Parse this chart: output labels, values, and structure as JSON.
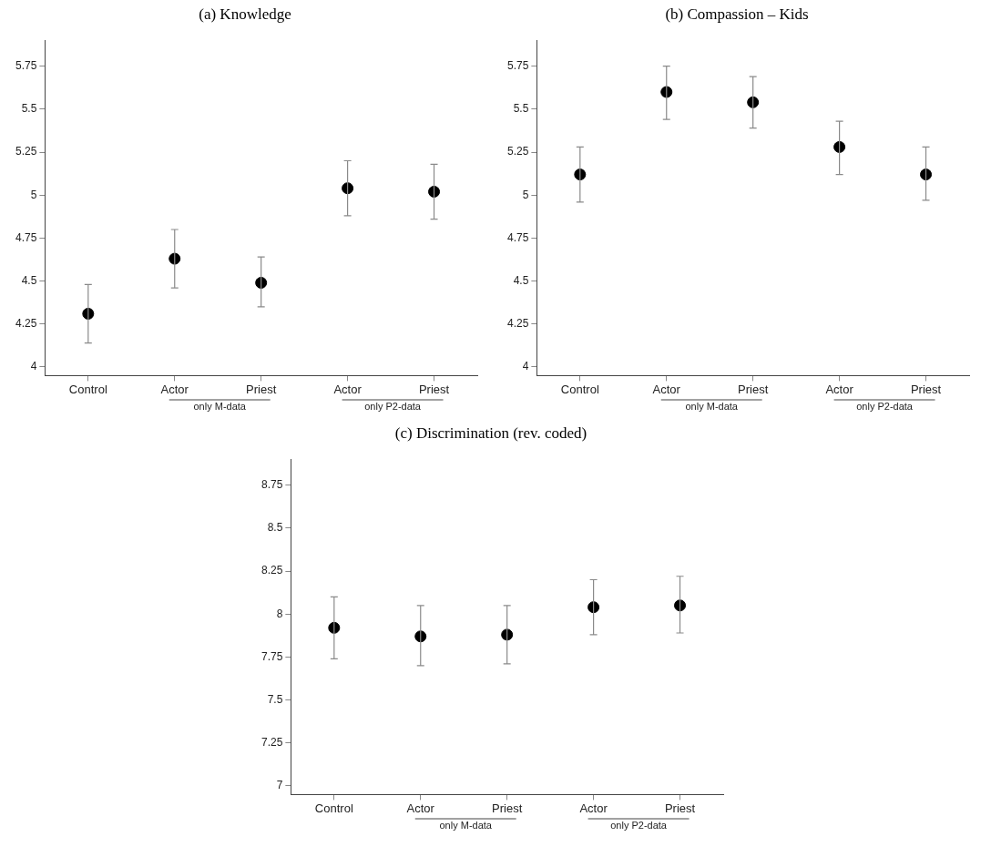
{
  "chart_data": [
    {
      "type": "scatter",
      "title": "(a) Knowledge",
      "categories": [
        "Control",
        "Actor",
        "Priest",
        "Actor",
        "Priest"
      ],
      "color": "#000000",
      "marker": "circle",
      "values": [
        4.31,
        4.63,
        4.49,
        5.04,
        5.02
      ],
      "errors": [
        [
          4.14,
          4.48
        ],
        [
          4.46,
          4.8
        ],
        [
          4.35,
          4.64
        ],
        [
          4.88,
          5.2
        ],
        [
          4.86,
          5.18
        ]
      ],
      "ylim": [
        3.95,
        5.9
      ],
      "yticks": [
        4,
        4.25,
        4.5,
        4.75,
        5,
        5.25,
        5.5,
        5.75
      ],
      "annotations": [
        "only M-data",
        "only P2-data"
      ]
    },
    {
      "type": "scatter",
      "title": "(b) Compassion – Kids",
      "categories": [
        "Control",
        "Actor",
        "Priest",
        "Actor",
        "Priest"
      ],
      "color": "#000000",
      "marker": "circle",
      "values": [
        5.12,
        5.6,
        5.54,
        5.28,
        5.12
      ],
      "errors": [
        [
          4.96,
          5.28
        ],
        [
          5.44,
          5.75
        ],
        [
          5.39,
          5.69
        ],
        [
          5.12,
          5.43
        ],
        [
          4.97,
          5.28
        ]
      ],
      "ylim": [
        3.95,
        5.9
      ],
      "yticks": [
        4,
        4.25,
        4.5,
        4.75,
        5,
        5.25,
        5.5,
        5.75
      ],
      "annotations": [
        "only M-data",
        "only P2-data"
      ]
    },
    {
      "type": "scatter",
      "title": "(c) Discrimination (rev. coded)",
      "categories": [
        "Control",
        "Actor",
        "Priest",
        "Actor",
        "Priest"
      ],
      "color": "#000000",
      "marker": "circle",
      "values": [
        7.92,
        7.87,
        7.88,
        8.04,
        8.05
      ],
      "errors": [
        [
          7.74,
          8.1
        ],
        [
          7.7,
          8.05
        ],
        [
          7.71,
          8.05
        ],
        [
          7.88,
          8.2
        ],
        [
          7.89,
          8.22
        ]
      ],
      "ylim": [
        6.95,
        8.9
      ],
      "yticks": [
        7,
        7.25,
        7.5,
        7.75,
        8,
        8.25,
        8.5,
        8.75
      ],
      "annotations": [
        "only M-data",
        "only P2-data"
      ]
    }
  ]
}
